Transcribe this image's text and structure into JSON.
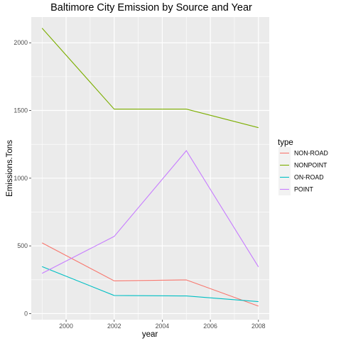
{
  "chart_data": {
    "type": "line",
    "title": "Baltimore City Emission by Source and Year",
    "xlabel": "year",
    "ylabel": "Emissions.Tons",
    "x": [
      1999,
      2002,
      2005,
      2008
    ],
    "xlim": [
      1998.55,
      2008.45
    ],
    "ylim": [
      -45,
      2190
    ],
    "x_ticks": [
      2000,
      2002,
      2004,
      2006,
      2008
    ],
    "y_ticks": [
      0,
      500,
      1000,
      1500,
      2000
    ],
    "grid": true,
    "legend": {
      "title": "type",
      "placement": "right"
    },
    "series": [
      {
        "name": "NON-ROAD",
        "color": "#F8766D",
        "values": [
          522,
          242,
          249,
          55
        ]
      },
      {
        "name": "NONPOINT",
        "color": "#7CAE00",
        "values": [
          2108,
          1510,
          1510,
          1373
        ]
      },
      {
        "name": "ON-ROAD",
        "color": "#00BFC4",
        "values": [
          347,
          134,
          130,
          88
        ]
      },
      {
        "name": "POINT",
        "color": "#C77CFF",
        "values": [
          297,
          570,
          1203,
          345
        ]
      }
    ]
  }
}
